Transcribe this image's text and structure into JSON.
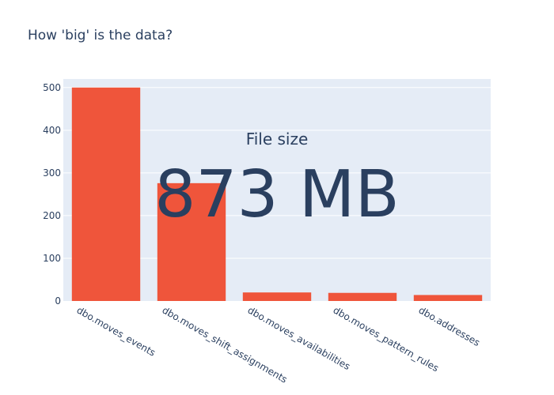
{
  "chart_data": {
    "type": "bar",
    "title": "How 'big' is the data?",
    "categories": [
      "dbo.moves_events",
      "dbo.moves_shift_assignments",
      "dbo.moves_availabilities",
      "dbo.moves_pattern_rules",
      "dbo.addresses"
    ],
    "values": [
      500,
      276,
      20,
      19,
      14
    ],
    "ylim": [
      0,
      520
    ],
    "yticks": [
      0,
      100,
      200,
      300,
      400,
      500
    ],
    "grid": true,
    "colors": {
      "bar": "#ef553b",
      "plot_bg": "#e5ecf6",
      "text": "#2a3f5f",
      "grid": "#ffffff"
    },
    "indicator": {
      "title": "File size",
      "value": "873 MB"
    }
  }
}
